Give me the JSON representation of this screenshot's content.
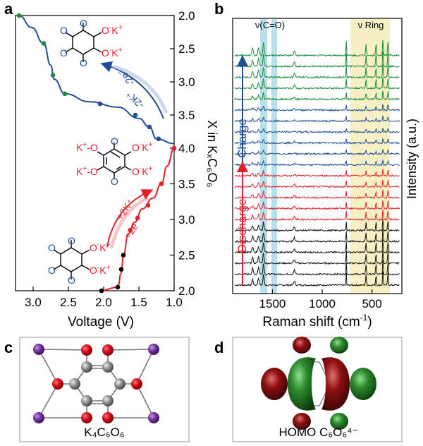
{
  "panel_labels": {
    "a": "a",
    "b": "b",
    "c": "c",
    "d": "d"
  },
  "colors": {
    "charge": "#1f4e96",
    "discharge": "#e0202a",
    "black": "#111111",
    "green": "#1a8a3a",
    "molecule_o": "#1f4e96",
    "molecule_k": "#e0202a",
    "cyan_band": "#a9dbe6",
    "yellow_band": "#f7f0c5"
  },
  "panel_a": {
    "xlabel": "Voltage (V)",
    "right_axis_label": "X in KₓC₆O₆",
    "x_ticks": [
      "3.0",
      "2.5",
      "2.0",
      "1.5",
      "1.0"
    ],
    "upper_ticks": [
      "2.0",
      "2.5",
      "3.0",
      "3.5",
      "4.0"
    ],
    "lower_ticks": [
      "3.5",
      "3.0",
      "2.5",
      "2.0"
    ],
    "molecules": {
      "top": {
        "o": "O",
        "ominus1": "O",
        "ominus2": "O",
        "k1": "K",
        "k2": "K",
        "sup": "-",
        "plus": "+"
      },
      "middle": {
        "k": "K",
        "o": "O",
        "sup": "-",
        "plus": "+"
      },
      "bottom": {
        "o": "O",
        "ominus1": "O",
        "ominus2": "O",
        "k1": "K",
        "k2": "K",
        "sup": "-",
        "plus": "+"
      }
    },
    "charge_arrow_label": "-2K⁺",
    "charge_arrow_label2": "-2e⁻",
    "discharge_arrow_label": "+2K⁺",
    "discharge_arrow_label2": "+2e⁻"
  },
  "panel_b": {
    "xlabel_main": "Raman shift (cm",
    "xlabel_sup": "-1",
    "xlabel_tail": ")",
    "ylabel": "Intensity (a.u.)",
    "x_ticks": [
      "1500",
      "1000",
      "500"
    ],
    "band_label_co": "ν(C=O)",
    "band_label_ring": "ν Ring",
    "charge_label": "Charge",
    "discharge_label": "Discharge"
  },
  "panel_c": {
    "caption": "K₄C₆O₆"
  },
  "panel_d": {
    "caption": "HOMO C₆O₆⁴⁻"
  },
  "chart_data": [
    {
      "type": "line",
      "panel": "a",
      "title": "",
      "xlabel": "Voltage (V)",
      "ylabel": "X in KₓC₆O₆",
      "xlim": [
        3.25,
        1.0
      ],
      "x_reversed": true,
      "series": [
        {
          "name": "",
          "color": "#1f4e96",
          "y_axis": "upper (2.0 at top → 4.0)",
          "points": [
            [
              3.2,
              2.0
            ],
            [
              3.02,
              2.18
            ],
            [
              2.85,
              2.42
            ],
            [
              2.75,
              2.75
            ],
            [
              2.7,
              2.96
            ],
            [
              2.55,
              3.18
            ],
            [
              2.2,
              3.3
            ],
            [
              1.8,
              3.38
            ],
            [
              1.5,
              3.55
            ],
            [
              1.35,
              3.68
            ],
            [
              1.25,
              3.86
            ],
            [
              1.0,
              3.93
            ]
          ],
          "markers": [
            [
              3.2,
              2.0
            ],
            [
              2.85,
              2.42
            ],
            [
              2.72,
              2.9
            ],
            [
              2.55,
              3.18
            ],
            [
              2.05,
              3.33
            ],
            [
              1.55,
              3.5
            ],
            [
              1.35,
              3.68
            ],
            [
              1.22,
              3.86
            ]
          ]
        },
        {
          "name": "",
          "color": "#e0202a",
          "y_axis": "lower (4.0 at top → 2.0)",
          "points": [
            [
              1.0,
              4.0
            ],
            [
              1.1,
              3.75
            ],
            [
              1.18,
              3.5
            ],
            [
              1.3,
              3.3
            ],
            [
              1.45,
              3.15
            ],
            [
              1.56,
              2.96
            ],
            [
              1.65,
              2.8
            ],
            [
              1.72,
              2.5
            ],
            [
              1.75,
              2.25
            ],
            [
              1.8,
              2.05
            ],
            [
              2.05,
              2.0
            ]
          ],
          "markers": [
            [
              1.0,
              4.0
            ],
            [
              1.18,
              3.5
            ],
            [
              1.37,
              3.2
            ],
            [
              1.52,
              3.02
            ],
            [
              1.62,
              2.85
            ],
            [
              1.72,
              2.5
            ],
            [
              1.75,
              2.3
            ],
            [
              1.8,
              2.05
            ],
            [
              2.03,
              2.0
            ]
          ]
        }
      ]
    },
    {
      "type": "line",
      "panel": "b",
      "title": "",
      "xlabel": "Raman shift (cm-1)",
      "ylabel": "Intensity (a.u.)",
      "xlim": [
        1900,
        200
      ],
      "x_reversed": true,
      "bands": {
        "co": [
          1710,
          1580
        ],
        "ring": [
          770,
          280
        ]
      },
      "peaks_cm": [
        1700,
        1640,
        1590,
        1280,
        760,
        560,
        460,
        390,
        340
      ],
      "spectra": [
        {
          "color": "#111111",
          "peak_scale": 1.0
        },
        {
          "color": "#111111",
          "peak_scale": 1.0
        },
        {
          "color": "#111111",
          "peak_scale": 0.95
        },
        {
          "color": "#111111",
          "peak_scale": 0.9
        },
        {
          "color": "#111111",
          "peak_scale": 0.85
        },
        {
          "color": "#111111",
          "peak_scale": 0.8
        },
        {
          "color": "#e0202a",
          "peak_scale": 0.7
        },
        {
          "color": "#e0202a",
          "peak_scale": 0.6
        },
        {
          "color": "#e0202a",
          "peak_scale": 0.55
        },
        {
          "color": "#e0202a",
          "peak_scale": 0.5
        },
        {
          "color": "#e0202a",
          "peak_scale": 0.45
        },
        {
          "color": "#1f4e96",
          "peak_scale": 0.35
        },
        {
          "color": "#1f4e96",
          "peak_scale": 0.3
        },
        {
          "color": "#1f4e96",
          "peak_scale": 0.3
        },
        {
          "color": "#1f4e96",
          "peak_scale": 0.3
        },
        {
          "color": "#1f4e96",
          "peak_scale": 0.35
        },
        {
          "color": "#1f4e96",
          "peak_scale": 0.4
        },
        {
          "color": "#1a8a3a",
          "peak_scale": 0.6
        },
        {
          "color": "#1a8a3a",
          "peak_scale": 0.85
        },
        {
          "color": "#1a8a3a",
          "peak_scale": 1.0
        },
        {
          "color": "#1a8a3a",
          "peak_scale": 1.1
        },
        {
          "color": "#1a8a3a",
          "peak_scale": 1.2
        }
      ]
    }
  ]
}
